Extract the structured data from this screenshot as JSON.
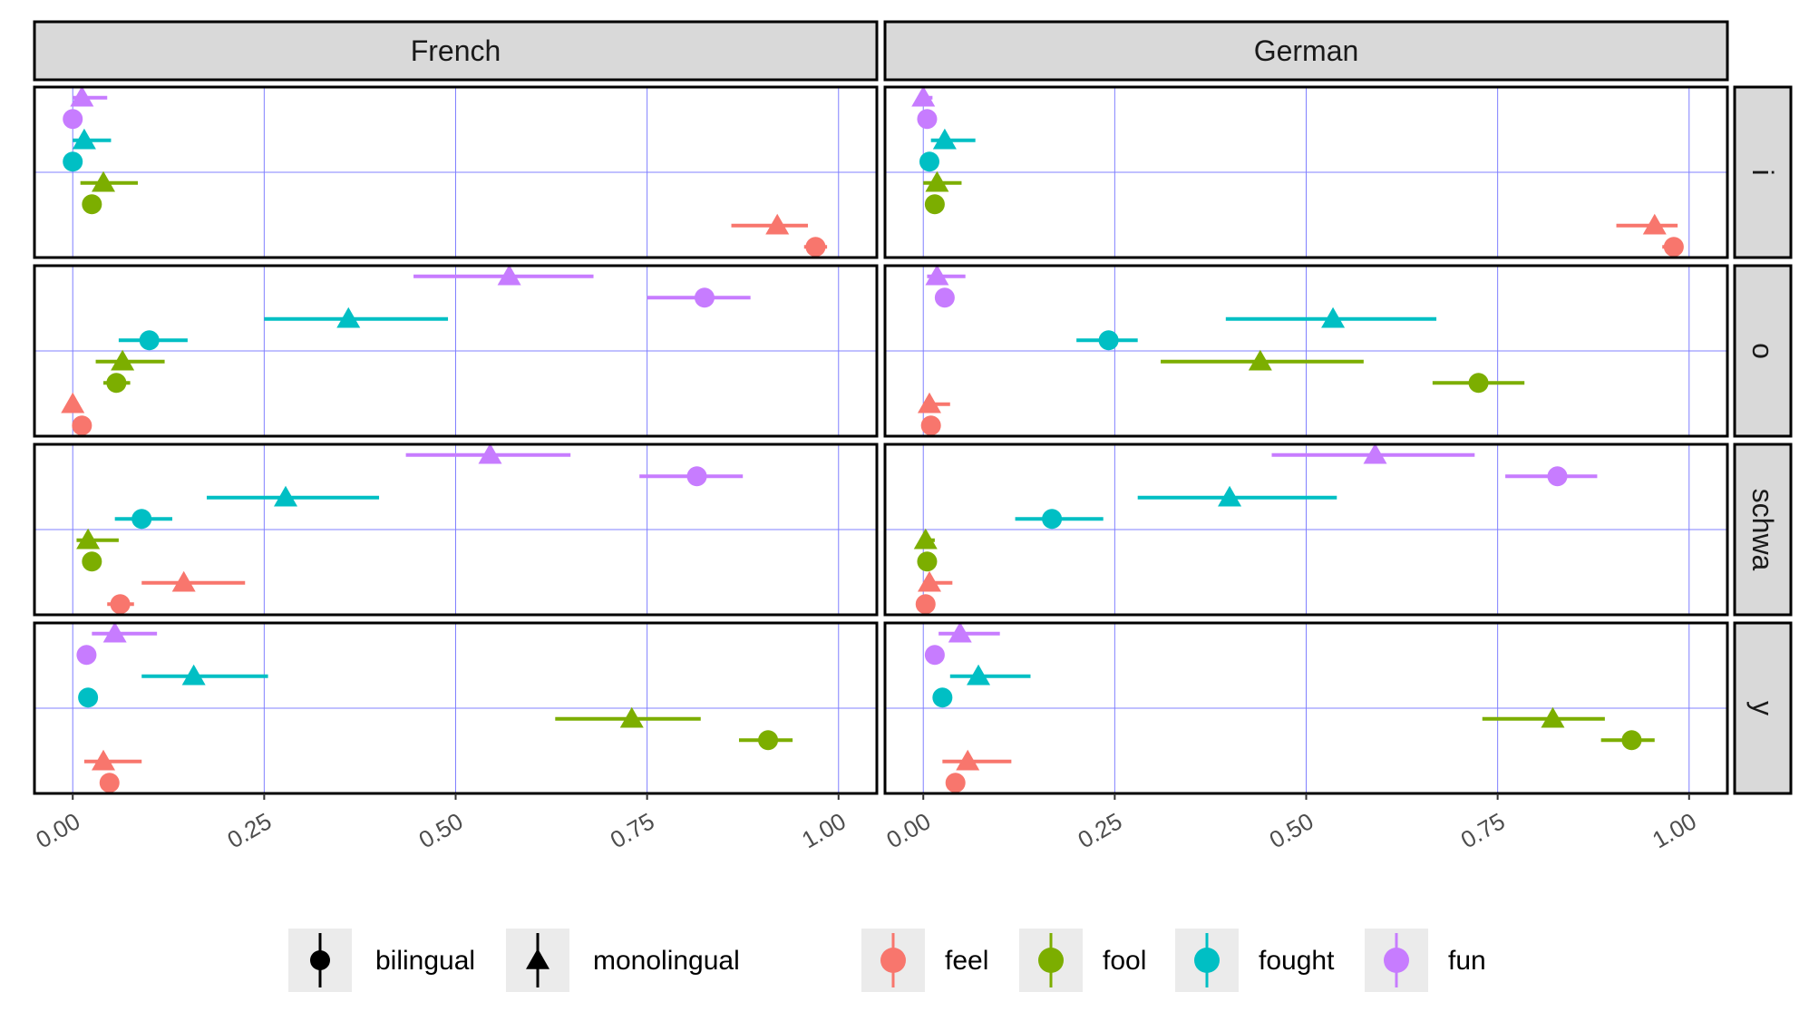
{
  "chart_data": {
    "type": "scatter",
    "subtype": "dot-whisker faceted",
    "facet_columns": [
      "French",
      "German"
    ],
    "facet_rows": [
      "i",
      "o",
      "schwa",
      "y"
    ],
    "x_ticks": [
      "0.00",
      "0.25",
      "0.50",
      "0.75",
      "1.00"
    ],
    "xlim": [
      -0.05,
      1.05
    ],
    "grid": true,
    "legend_position": "bottom",
    "groups": [
      {
        "label": "bilingual",
        "shape": "circle"
      },
      {
        "label": "monolingual",
        "shape": "triangle"
      }
    ],
    "words": [
      {
        "label": "feel",
        "color": "#F8766D"
      },
      {
        "label": "fool",
        "color": "#7CAE00"
      },
      {
        "label": "fought",
        "color": "#00BFC4"
      },
      {
        "label": "fun",
        "color": "#C77CFF"
      }
    ],
    "series_order_top_to_bottom": [
      "fun|monolingual",
      "fun|bilingual",
      "fought|monolingual",
      "fought|bilingual",
      "fool|monolingual",
      "fool|bilingual",
      "feel|monolingual",
      "feel|bilingual"
    ],
    "panels": [
      {
        "col": "French",
        "row": "i",
        "points": [
          {
            "word": "feel",
            "group": "bilingual",
            "x": 0.97,
            "lo": 0.955,
            "hi": 0.985
          },
          {
            "word": "feel",
            "group": "monolingual",
            "x": 0.92,
            "lo": 0.86,
            "hi": 0.96
          },
          {
            "word": "fool",
            "group": "bilingual",
            "x": 0.025,
            "lo": 0.015,
            "hi": 0.035
          },
          {
            "word": "fool",
            "group": "monolingual",
            "x": 0.04,
            "lo": 0.01,
            "hi": 0.085
          },
          {
            "word": "fought",
            "group": "bilingual",
            "x": 0.0,
            "lo": 0.0,
            "hi": 0.005
          },
          {
            "word": "fought",
            "group": "monolingual",
            "x": 0.015,
            "lo": 0.0,
            "hi": 0.05
          },
          {
            "word": "fun",
            "group": "bilingual",
            "x": 0.0,
            "lo": 0.0,
            "hi": 0.005
          },
          {
            "word": "fun",
            "group": "monolingual",
            "x": 0.012,
            "lo": 0.0,
            "hi": 0.045
          }
        ]
      },
      {
        "col": "French",
        "row": "o",
        "points": [
          {
            "word": "feel",
            "group": "bilingual",
            "x": 0.012,
            "lo": 0.0,
            "hi": 0.02
          },
          {
            "word": "feel",
            "group": "monolingual",
            "x": 0.0,
            "lo": 0.0,
            "hi": 0.005
          },
          {
            "word": "fool",
            "group": "bilingual",
            "x": 0.057,
            "lo": 0.04,
            "hi": 0.075
          },
          {
            "word": "fool",
            "group": "monolingual",
            "x": 0.065,
            "lo": 0.03,
            "hi": 0.12
          },
          {
            "word": "fought",
            "group": "bilingual",
            "x": 0.1,
            "lo": 0.06,
            "hi": 0.15
          },
          {
            "word": "fought",
            "group": "monolingual",
            "x": 0.36,
            "lo": 0.25,
            "hi": 0.49
          },
          {
            "word": "fun",
            "group": "bilingual",
            "x": 0.825,
            "lo": 0.75,
            "hi": 0.885
          },
          {
            "word": "fun",
            "group": "monolingual",
            "x": 0.57,
            "lo": 0.445,
            "hi": 0.68
          }
        ]
      },
      {
        "col": "French",
        "row": "schwa",
        "points": [
          {
            "word": "feel",
            "group": "bilingual",
            "x": 0.062,
            "lo": 0.045,
            "hi": 0.08
          },
          {
            "word": "feel",
            "group": "monolingual",
            "x": 0.145,
            "lo": 0.09,
            "hi": 0.225
          },
          {
            "word": "fool",
            "group": "bilingual",
            "x": 0.025,
            "lo": 0.015,
            "hi": 0.035
          },
          {
            "word": "fool",
            "group": "monolingual",
            "x": 0.02,
            "lo": 0.005,
            "hi": 0.06
          },
          {
            "word": "fought",
            "group": "bilingual",
            "x": 0.09,
            "lo": 0.055,
            "hi": 0.13
          },
          {
            "word": "fought",
            "group": "monolingual",
            "x": 0.278,
            "lo": 0.175,
            "hi": 0.4
          },
          {
            "word": "fun",
            "group": "bilingual",
            "x": 0.815,
            "lo": 0.74,
            "hi": 0.875
          },
          {
            "word": "fun",
            "group": "monolingual",
            "x": 0.545,
            "lo": 0.435,
            "hi": 0.65
          }
        ]
      },
      {
        "col": "French",
        "row": "y",
        "points": [
          {
            "word": "feel",
            "group": "bilingual",
            "x": 0.048,
            "lo": 0.038,
            "hi": 0.058
          },
          {
            "word": "feel",
            "group": "monolingual",
            "x": 0.04,
            "lo": 0.015,
            "hi": 0.09
          },
          {
            "word": "fool",
            "group": "bilingual",
            "x": 0.908,
            "lo": 0.87,
            "hi": 0.94
          },
          {
            "word": "fool",
            "group": "monolingual",
            "x": 0.73,
            "lo": 0.63,
            "hi": 0.82
          },
          {
            "word": "fought",
            "group": "bilingual",
            "x": 0.02,
            "lo": 0.01,
            "hi": 0.03
          },
          {
            "word": "fought",
            "group": "monolingual",
            "x": 0.158,
            "lo": 0.09,
            "hi": 0.255
          },
          {
            "word": "fun",
            "group": "bilingual",
            "x": 0.018,
            "lo": 0.008,
            "hi": 0.028
          },
          {
            "word": "fun",
            "group": "monolingual",
            "x": 0.055,
            "lo": 0.025,
            "hi": 0.11
          }
        ]
      },
      {
        "col": "German",
        "row": "i",
        "points": [
          {
            "word": "feel",
            "group": "bilingual",
            "x": 0.98,
            "lo": 0.965,
            "hi": 0.99
          },
          {
            "word": "feel",
            "group": "monolingual",
            "x": 0.955,
            "lo": 0.905,
            "hi": 0.985
          },
          {
            "word": "fool",
            "group": "bilingual",
            "x": 0.015,
            "lo": 0.008,
            "hi": 0.022
          },
          {
            "word": "fool",
            "group": "monolingual",
            "x": 0.018,
            "lo": 0.0,
            "hi": 0.05
          },
          {
            "word": "fought",
            "group": "bilingual",
            "x": 0.008,
            "lo": 0.0,
            "hi": 0.016
          },
          {
            "word": "fought",
            "group": "monolingual",
            "x": 0.028,
            "lo": 0.01,
            "hi": 0.068
          },
          {
            "word": "fun",
            "group": "bilingual",
            "x": 0.005,
            "lo": 0.0,
            "hi": 0.012
          },
          {
            "word": "fun",
            "group": "monolingual",
            "x": 0.0,
            "lo": 0.0,
            "hi": 0.012
          }
        ]
      },
      {
        "col": "German",
        "row": "o",
        "points": [
          {
            "word": "feel",
            "group": "bilingual",
            "x": 0.01,
            "lo": 0.002,
            "hi": 0.018
          },
          {
            "word": "feel",
            "group": "monolingual",
            "x": 0.008,
            "lo": 0.0,
            "hi": 0.035
          },
          {
            "word": "fool",
            "group": "bilingual",
            "x": 0.725,
            "lo": 0.665,
            "hi": 0.785
          },
          {
            "word": "fool",
            "group": "monolingual",
            "x": 0.44,
            "lo": 0.31,
            "hi": 0.575
          },
          {
            "word": "fought",
            "group": "bilingual",
            "x": 0.242,
            "lo": 0.2,
            "hi": 0.28
          },
          {
            "word": "fought",
            "group": "monolingual",
            "x": 0.535,
            "lo": 0.395,
            "hi": 0.67
          },
          {
            "word": "fun",
            "group": "bilingual",
            "x": 0.028,
            "lo": 0.02,
            "hi": 0.035
          },
          {
            "word": "fun",
            "group": "monolingual",
            "x": 0.018,
            "lo": 0.005,
            "hi": 0.055
          }
        ]
      },
      {
        "col": "German",
        "row": "schwa",
        "points": [
          {
            "word": "feel",
            "group": "bilingual",
            "x": 0.003,
            "lo": 0.0,
            "hi": 0.008
          },
          {
            "word": "feel",
            "group": "monolingual",
            "x": 0.008,
            "lo": 0.0,
            "hi": 0.038
          },
          {
            "word": "fool",
            "group": "bilingual",
            "x": 0.005,
            "lo": 0.0,
            "hi": 0.012
          },
          {
            "word": "fool",
            "group": "monolingual",
            "x": 0.003,
            "lo": 0.0,
            "hi": 0.015
          },
          {
            "word": "fought",
            "group": "bilingual",
            "x": 0.168,
            "lo": 0.12,
            "hi": 0.235
          },
          {
            "word": "fought",
            "group": "monolingual",
            "x": 0.4,
            "lo": 0.28,
            "hi": 0.54
          },
          {
            "word": "fun",
            "group": "bilingual",
            "x": 0.828,
            "lo": 0.76,
            "hi": 0.88
          },
          {
            "word": "fun",
            "group": "monolingual",
            "x": 0.59,
            "lo": 0.455,
            "hi": 0.72
          }
        ]
      },
      {
        "col": "German",
        "row": "y",
        "points": [
          {
            "word": "feel",
            "group": "bilingual",
            "x": 0.042,
            "lo": 0.03,
            "hi": 0.052
          },
          {
            "word": "feel",
            "group": "monolingual",
            "x": 0.058,
            "lo": 0.025,
            "hi": 0.115
          },
          {
            "word": "fool",
            "group": "bilingual",
            "x": 0.925,
            "lo": 0.885,
            "hi": 0.955
          },
          {
            "word": "fool",
            "group": "monolingual",
            "x": 0.822,
            "lo": 0.73,
            "hi": 0.89
          },
          {
            "word": "fought",
            "group": "bilingual",
            "x": 0.025,
            "lo": 0.015,
            "hi": 0.035
          },
          {
            "word": "fought",
            "group": "monolingual",
            "x": 0.072,
            "lo": 0.035,
            "hi": 0.14
          },
          {
            "word": "fun",
            "group": "bilingual",
            "x": 0.015,
            "lo": 0.005,
            "hi": 0.025
          },
          {
            "word": "fun",
            "group": "monolingual",
            "x": 0.048,
            "lo": 0.02,
            "hi": 0.1
          }
        ]
      }
    ]
  }
}
